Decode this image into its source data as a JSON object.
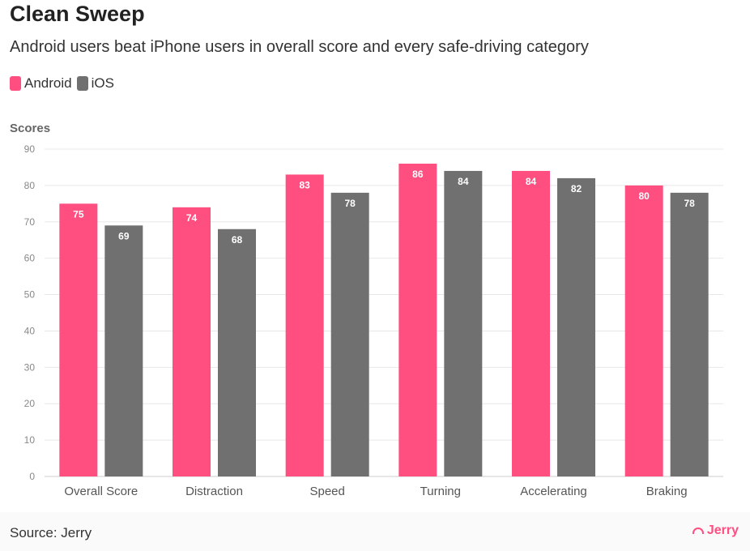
{
  "header": {
    "title": "Clean Sweep",
    "subtitle": "Android users beat iPhone users in overall score and every safe-driving category"
  },
  "legend": [
    {
      "name": "Android",
      "color": "#ff4f81"
    },
    {
      "name": "iOS",
      "color": "#707070"
    }
  ],
  "footer": {
    "source": "Source: Jerry",
    "brand": "Jerry",
    "brand_color": "#ff4f81"
  },
  "chart_data": {
    "type": "bar",
    "title": "Clean Sweep",
    "subtitle": "Android users beat iPhone users in overall score and every safe-driving category",
    "ylabel": "Scores",
    "xlabel": "",
    "categories": [
      "Overall Score",
      "Distraction",
      "Speed",
      "Turning",
      "Accelerating",
      "Braking"
    ],
    "series": [
      {
        "name": "Android",
        "color": "#ff4f81",
        "values": [
          75,
          74,
          83,
          86,
          84,
          80
        ]
      },
      {
        "name": "iOS",
        "color": "#707070",
        "values": [
          69,
          68,
          78,
          84,
          82,
          78
        ]
      }
    ],
    "ylim": [
      0,
      90
    ],
    "yticks": [
      0,
      10,
      20,
      30,
      40,
      50,
      60,
      70,
      80,
      90
    ],
    "grid": true,
    "legend_position": "top-left",
    "data_labels": true
  }
}
